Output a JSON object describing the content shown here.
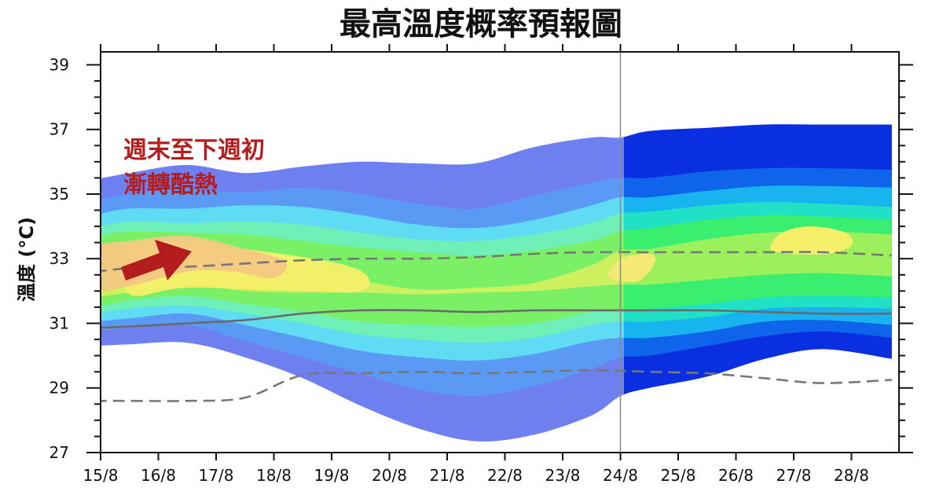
{
  "chart_data": {
    "type": "area",
    "title": "最高溫度概率預報圖",
    "ylabel": "溫度 (°C)",
    "xlabel": "",
    "ylim": [
      27,
      39.4
    ],
    "yticks": [
      27,
      29,
      31,
      33,
      35,
      37,
      39
    ],
    "categories": [
      "15/8",
      "16/8",
      "17/8",
      "18/8",
      "19/8",
      "20/8",
      "21/8",
      "22/8",
      "23/8",
      "24/8",
      "25/8",
      "26/8",
      "27/8",
      "28/8"
    ],
    "highlighted_dates": [
      "16/8",
      "23/8"
    ],
    "highlight_color": "#d42a2a",
    "forecast_divider_at": "24/8",
    "annotation": {
      "line1": "週末至下週初",
      "line2": "漸轉酷熱",
      "color": "#b41d1d",
      "arrow": "up-right arrow"
    },
    "probability_bands": {
      "x": [
        14.9,
        15.5,
        16.5,
        17.5,
        18.5,
        19.5,
        20.5,
        21.5,
        22.5,
        23.5,
        24.0,
        24.5,
        25.5,
        26.5,
        27.5,
        28.7
      ],
      "series": [
        {
          "color": "#6e7ff0",
          "lower": [
            30.3,
            30.35,
            30.4,
            29.95,
            29.3,
            28.45,
            27.75,
            27.35,
            27.55,
            28.15,
            28.75,
            29.0,
            29.35,
            29.9,
            30.2,
            29.9
          ],
          "upper": [
            35.45,
            35.65,
            35.9,
            35.65,
            35.85,
            36.0,
            35.95,
            35.95,
            36.45,
            36.75,
            36.75,
            36.95,
            37.05,
            37.15,
            37.15,
            37.15
          ]
        },
        {
          "color": "#5b9af4",
          "lower": [
            30.75,
            30.85,
            30.95,
            30.45,
            29.95,
            29.45,
            28.95,
            28.75,
            29.05,
            29.6,
            29.95,
            30.0,
            30.3,
            30.6,
            30.75,
            30.55
          ],
          "upper": [
            34.8,
            35.0,
            35.15,
            35.05,
            35.2,
            35.0,
            34.7,
            34.55,
            34.95,
            35.35,
            35.5,
            35.5,
            35.7,
            35.8,
            35.8,
            35.75
          ]
        },
        {
          "color": "#5fdcf4",
          "lower": [
            31.05,
            31.15,
            31.3,
            30.95,
            30.55,
            30.15,
            29.95,
            29.85,
            30.05,
            30.45,
            30.55,
            30.55,
            30.75,
            31.05,
            31.1,
            30.95
          ],
          "upper": [
            34.35,
            34.55,
            34.55,
            34.65,
            34.6,
            34.35,
            34.05,
            33.95,
            34.2,
            34.65,
            34.9,
            34.9,
            35.1,
            35.25,
            35.25,
            35.2
          ]
        },
        {
          "color": "#6ef0b8",
          "lower": [
            31.3,
            31.45,
            31.55,
            31.3,
            31.0,
            30.65,
            30.5,
            30.4,
            30.55,
            30.95,
            31.05,
            31.05,
            31.2,
            31.45,
            31.5,
            31.45
          ],
          "upper": [
            33.95,
            34.15,
            34.1,
            34.15,
            34.05,
            33.8,
            33.6,
            33.55,
            33.75,
            34.1,
            34.4,
            34.45,
            34.65,
            34.75,
            34.7,
            34.6
          ]
        },
        {
          "color": "#7af067",
          "lower": [
            31.5,
            31.7,
            31.85,
            31.6,
            31.35,
            31.05,
            30.95,
            30.9,
            31.0,
            31.35,
            31.4,
            31.45,
            31.6,
            31.8,
            31.85,
            31.8
          ],
          "upper": [
            33.65,
            33.85,
            33.8,
            33.75,
            33.55,
            33.35,
            33.2,
            33.1,
            33.25,
            33.55,
            33.85,
            33.95,
            34.2,
            34.35,
            34.3,
            34.2
          ]
        },
        {
          "color": "#cff05e",
          "lower": [
            31.8,
            31.95,
            32.2,
            32.0,
            31.95,
            31.95,
            31.9,
            31.95,
            32.0,
            32.15,
            32.2,
            32.2,
            32.35,
            32.5,
            32.55,
            32.45
          ],
          "upper": [
            33.35,
            33.45,
            33.45,
            33.25,
            32.95,
            32.35,
            32.05,
            32.1,
            32.25,
            32.8,
            33.25,
            33.3,
            33.6,
            33.8,
            33.85,
            33.75
          ]
        }
      ]
    },
    "warm_zones": [
      {
        "color": "#f5ef6a",
        "x": [
          15.5,
          16.5,
          18.5,
          19.5,
          19.6,
          19.0,
          17.5,
          16.5,
          15.5
        ],
        "y": [
          31.9,
          32.1,
          32.0,
          32.0,
          32.5,
          32.9,
          33.3,
          33.55,
          33.3
        ]
      },
      {
        "color": "#f3c882",
        "x": [
          14.9,
          15.5,
          16.5,
          17.3,
          18.0,
          18.2,
          17.5,
          16.5,
          15.5,
          14.9
        ],
        "y": [
          32.1,
          32.15,
          32.6,
          32.6,
          32.4,
          32.9,
          33.3,
          33.7,
          33.55,
          33.3
        ]
      },
      {
        "color": "#f3e974",
        "x": [
          23.8,
          24.3,
          24.6,
          24.5,
          24.0
        ],
        "y": [
          32.45,
          32.3,
          32.9,
          33.15,
          33.0
        ]
      },
      {
        "color": "#f5ef6a",
        "x": [
          26.6,
          27.0,
          27.6,
          28.0,
          27.9,
          27.3,
          26.8
        ],
        "y": [
          33.3,
          33.15,
          33.15,
          33.4,
          33.8,
          34.0,
          33.8
        ]
      }
    ],
    "second_period_bands": [
      {
        "color": "#0a2fe0",
        "lower": 29.85,
        "upper": 37.2
      },
      {
        "color": "#0f64ec",
        "lower": 30.55,
        "upper": 36.1
      },
      {
        "color": "#18b4f0",
        "lower": 31.1,
        "upper": 35.4
      },
      {
        "color": "#20e0c6",
        "lower": 31.55,
        "upper": 34.85
      },
      {
        "color": "#3aee70",
        "lower": 32.15,
        "upper": 34.3
      }
    ],
    "lines": [
      {
        "name": "",
        "style": "dashed",
        "color": "#777777",
        "x": [
          14.9,
          15.5,
          16.5,
          17.5,
          18.5,
          19.5,
          20.5,
          21.5,
          22.5,
          23.5,
          24.5,
          25.5,
          26.5,
          27.5,
          28.7
        ],
        "y": [
          32.6,
          32.7,
          32.75,
          32.85,
          32.95,
          33.0,
          33.0,
          33.05,
          33.15,
          33.2,
          33.2,
          33.2,
          33.2,
          33.2,
          33.1
        ]
      },
      {
        "name": "",
        "style": "solid",
        "color": "#6a6a6a",
        "x": [
          14.9,
          15.5,
          16.5,
          17.5,
          18.5,
          19.5,
          20.5,
          21.5,
          22.5,
          23.5,
          24.5,
          25.5,
          26.5,
          27.5,
          28.7
        ],
        "y": [
          30.85,
          30.9,
          31.0,
          31.1,
          31.3,
          31.4,
          31.4,
          31.35,
          31.4,
          31.4,
          31.4,
          31.4,
          31.35,
          31.3,
          31.3
        ]
      },
      {
        "name": "",
        "style": "dashed",
        "color": "#777777",
        "x": [
          14.9,
          15.5,
          16.5,
          17.5,
          18.5,
          19.5,
          20.5,
          21.5,
          22.5,
          23.5,
          24.5,
          25.5,
          26.5,
          27.5,
          28.7
        ],
        "y": [
          28.6,
          28.6,
          28.6,
          28.7,
          29.4,
          29.45,
          29.5,
          29.45,
          29.5,
          29.55,
          29.5,
          29.45,
          29.3,
          29.15,
          29.25
        ]
      }
    ]
  }
}
